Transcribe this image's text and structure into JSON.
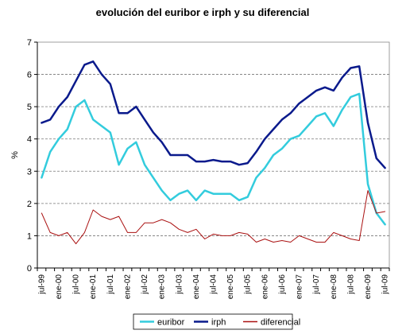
{
  "chart_data": {
    "type": "line",
    "title": "evolución del euribor e irph y su diferencial",
    "xlabel": "",
    "ylabel": "%",
    "ylim": [
      0,
      7
    ],
    "yticks": [
      "0",
      "1",
      "2",
      "3",
      "4",
      "5",
      "6",
      "7"
    ],
    "grid": "horizontal dashed",
    "legend_position": "bottom",
    "x": [
      "jul-99",
      "oct-99",
      "ene-00",
      "abr-00",
      "jul-00",
      "oct-00",
      "ene-01",
      "abr-01",
      "jul-01",
      "oct-01",
      "ene-02",
      "abr-02",
      "jul-02",
      "oct-02",
      "ene-03",
      "abr-03",
      "jul-03",
      "oct-03",
      "ene-04",
      "abr-04",
      "jul-04",
      "oct-04",
      "ene-05",
      "abr-05",
      "jul-05",
      "oct-05",
      "ene-06",
      "abr-06",
      "jul-06",
      "oct-06",
      "ene-07",
      "abr-07",
      "jul-07",
      "oct-07",
      "ene-08",
      "abr-08",
      "jul-08",
      "oct-08",
      "ene-09",
      "abr-09",
      "jul-09"
    ],
    "x_tick_labels": [
      "jul-99",
      "ene-00",
      "jul-00",
      "ene-01",
      "jul-01",
      "ene-02",
      "jul-02",
      "ene-03",
      "jul-03",
      "ene-04",
      "jul-04",
      "ene-05",
      "jul-05",
      "ene-06",
      "jul-06",
      "ene-07",
      "jul-07",
      "ene-08",
      "jul-08",
      "ene-09",
      "jul-09"
    ],
    "series": [
      {
        "name": "euribor",
        "color": "#33ccdd",
        "width": 2.5,
        "values": [
          2.8,
          3.6,
          4.0,
          4.3,
          5.0,
          5.2,
          4.6,
          4.4,
          4.2,
          3.2,
          3.7,
          3.9,
          3.2,
          2.8,
          2.4,
          2.1,
          2.3,
          2.4,
          2.1,
          2.4,
          2.3,
          2.3,
          2.3,
          2.1,
          2.2,
          2.8,
          3.1,
          3.5,
          3.7,
          4.0,
          4.1,
          4.4,
          4.7,
          4.8,
          4.4,
          4.9,
          5.3,
          5.4,
          2.6,
          1.7,
          1.35
        ]
      },
      {
        "name": "irph",
        "color": "#0a1a8c",
        "width": 2.5,
        "values": [
          4.5,
          4.6,
          5.0,
          5.3,
          5.8,
          6.3,
          6.4,
          6.0,
          5.7,
          4.8,
          4.8,
          5.0,
          4.6,
          4.2,
          3.9,
          3.5,
          3.5,
          3.5,
          3.3,
          3.3,
          3.35,
          3.3,
          3.3,
          3.2,
          3.25,
          3.6,
          4.0,
          4.3,
          4.6,
          4.8,
          5.1,
          5.3,
          5.5,
          5.6,
          5.5,
          5.9,
          6.2,
          6.25,
          4.5,
          3.4,
          3.1
        ]
      },
      {
        "name": "diferencial",
        "color": "#aa1111",
        "width": 1,
        "values": [
          1.7,
          1.1,
          1.0,
          1.1,
          0.75,
          1.1,
          1.8,
          1.6,
          1.5,
          1.6,
          1.1,
          1.1,
          1.4,
          1.4,
          1.5,
          1.4,
          1.2,
          1.1,
          1.2,
          0.9,
          1.05,
          1.0,
          1.0,
          1.1,
          1.05,
          0.8,
          0.9,
          0.8,
          0.85,
          0.8,
          1.0,
          0.9,
          0.8,
          0.8,
          1.1,
          1.0,
          0.9,
          0.85,
          2.4,
          1.7,
          1.75
        ]
      }
    ]
  }
}
